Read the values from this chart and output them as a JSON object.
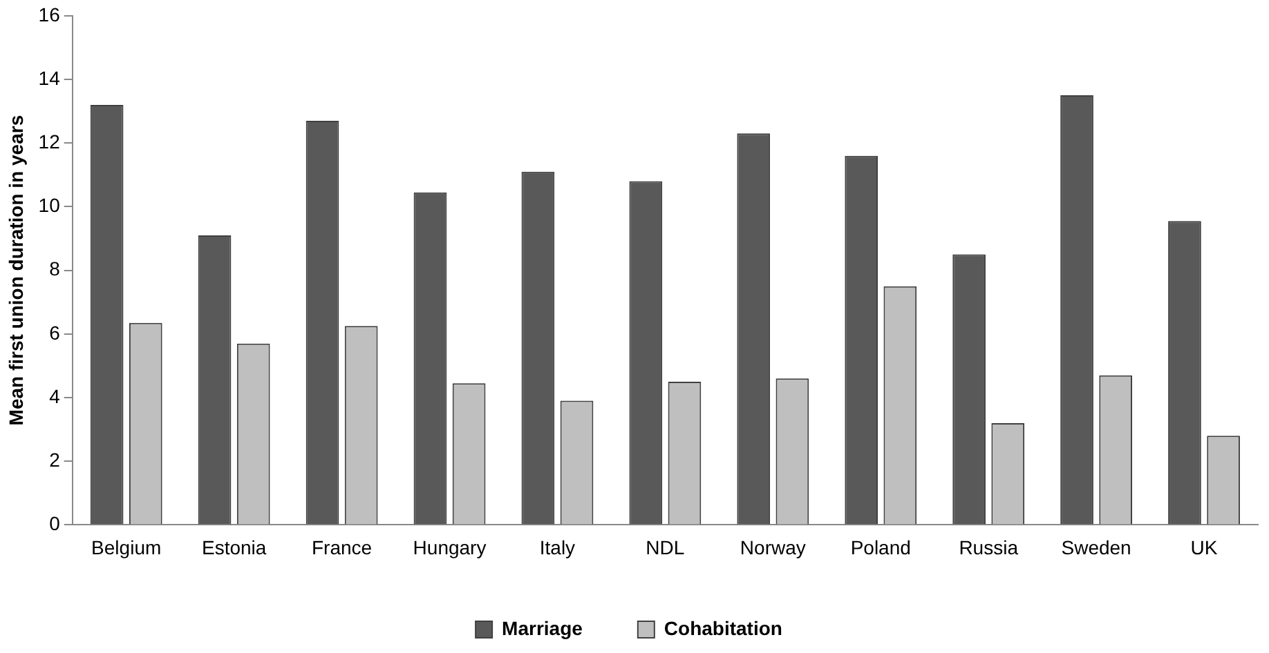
{
  "chart_data": {
    "type": "bar",
    "ylabel": "Mean first union duration in years",
    "categories": [
      "Belgium",
      "Estonia",
      "France",
      "Hungary",
      "Italy",
      "NDL",
      "Norway",
      "Poland",
      "Russia",
      "Sweden",
      "UK"
    ],
    "series": [
      {
        "name": "Marriage",
        "color": "#595959",
        "values": [
          13.2,
          9.1,
          12.7,
          10.45,
          11.1,
          10.8,
          12.3,
          11.6,
          8.5,
          13.5,
          9.55
        ]
      },
      {
        "name": "Cohabitation",
        "color": "#bfbfbf",
        "values": [
          6.35,
          5.7,
          6.25,
          4.45,
          3.9,
          4.5,
          4.6,
          7.5,
          3.2,
          4.7,
          2.8
        ]
      }
    ],
    "ylim": [
      0,
      16
    ],
    "yticks": [
      0,
      2,
      4,
      6,
      8,
      10,
      12,
      14,
      16
    ],
    "grid": false,
    "legend": "bottom"
  }
}
